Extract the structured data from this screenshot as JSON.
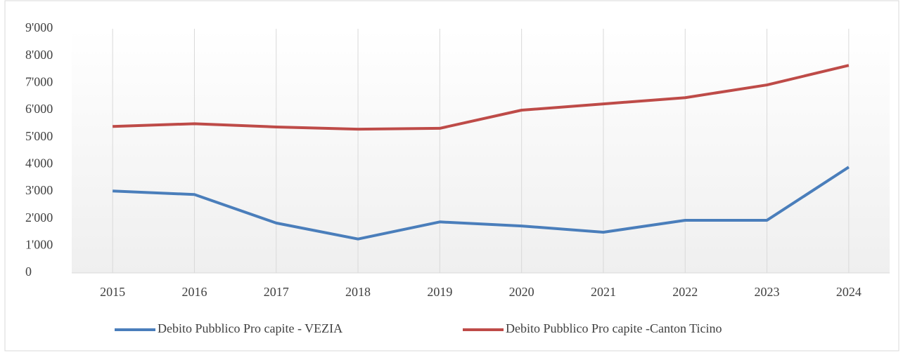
{
  "chart_data": {
    "type": "line",
    "categories": [
      "2015",
      "2016",
      "2017",
      "2018",
      "2019",
      "2020",
      "2021",
      "2022",
      "2023",
      "2024"
    ],
    "series": [
      {
        "name": "Debito Pubblico Pro capite - VEZIA",
        "color": "#4a7ebb",
        "values": [
          3020,
          2890,
          1840,
          1250,
          1880,
          1730,
          1500,
          1940,
          1940,
          3900
        ]
      },
      {
        "name": "Debito Pubblico Pro capite -Canton Ticino",
        "color": "#be4b48",
        "values": [
          5400,
          5500,
          5380,
          5300,
          5330,
          6000,
          6230,
          6460,
          6930,
          7650
        ]
      }
    ],
    "ylim": [
      0,
      9000
    ],
    "yticks": [
      0,
      {
        "value": 1000,
        "label": "1'000"
      },
      {
        "value": 2000,
        "label": "2'000"
      },
      {
        "value": 3000,
        "label": "3'000"
      },
      {
        "value": 4000,
        "label": "4'000"
      },
      {
        "value": 5000,
        "label": "5'000"
      },
      {
        "value": 6000,
        "label": "6'000"
      },
      {
        "value": 7000,
        "label": "7'000"
      },
      {
        "value": 8000,
        "label": "8'000"
      },
      {
        "value": 9000,
        "label": "9'000"
      }
    ],
    "grid": "x",
    "legend": "bottom"
  }
}
